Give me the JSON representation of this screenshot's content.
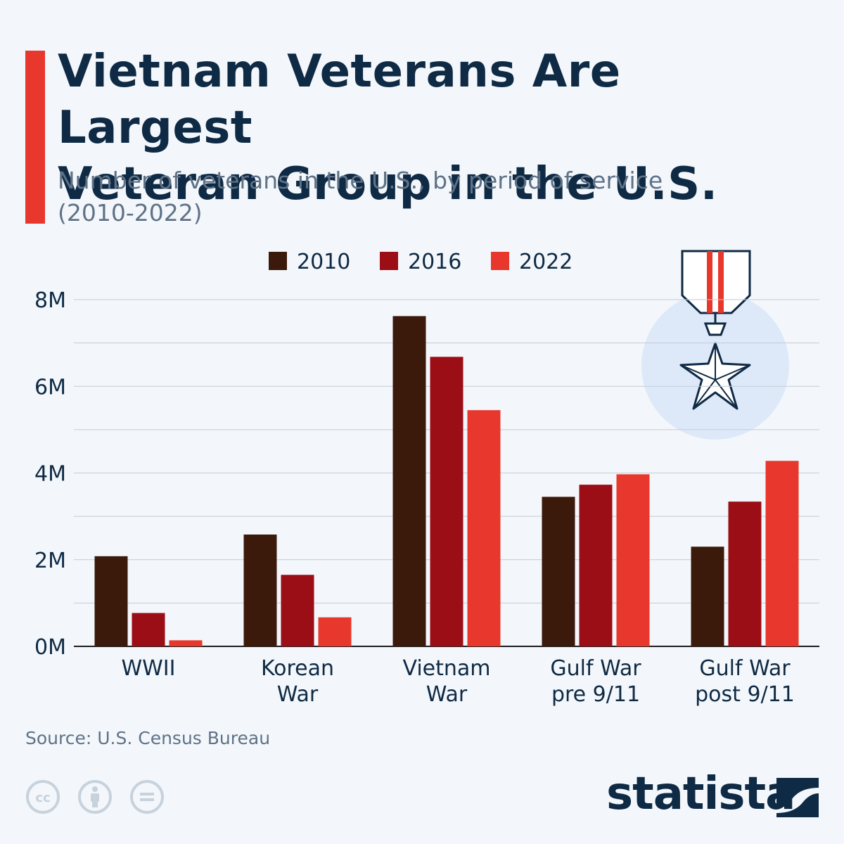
{
  "header": {
    "title_line1": "Vietnam Veterans Are Largest",
    "title_line2": "Veteran Group in the U.S.",
    "subtitle_line1": "Number of veterans in the U.S., by period of service",
    "subtitle_line2": "(2010-2022)"
  },
  "colors": {
    "accent": "#e8372c",
    "title": "#0f2a44",
    "series_2010": "#3b1a0c",
    "series_2016": "#9b0e16",
    "series_2022": "#e8372c"
  },
  "chart_data": {
    "type": "bar",
    "categories": [
      [
        "WWII"
      ],
      [
        "Korean",
        "War"
      ],
      [
        "Vietnam",
        "War"
      ],
      [
        "Gulf War",
        "pre 9/11"
      ],
      [
        "Gulf War",
        "post 9/11"
      ]
    ],
    "series": [
      {
        "name": "2010",
        "color": "#3b1a0c",
        "values": [
          2.08,
          2.58,
          7.62,
          3.45,
          2.3
        ]
      },
      {
        "name": "2016",
        "color": "#9b0e16",
        "values": [
          0.77,
          1.65,
          6.68,
          3.73,
          3.34
        ]
      },
      {
        "name": "2022",
        "color": "#e8372c",
        "values": [
          0.14,
          0.67,
          5.45,
          3.97,
          4.28
        ]
      }
    ],
    "yticks": [
      "0M",
      "2M",
      "4M",
      "6M",
      "8M"
    ],
    "ylim": [
      0,
      8
    ],
    "unit": "millions",
    "grid": true,
    "legend": "top"
  },
  "footer": {
    "source": "Source: U.S. Census Bureau",
    "brand": "statista"
  },
  "icons": [
    "medal-icon",
    "cc-icon",
    "attribution-icon",
    "no-derivatives-icon",
    "statista-logo-icon"
  ]
}
